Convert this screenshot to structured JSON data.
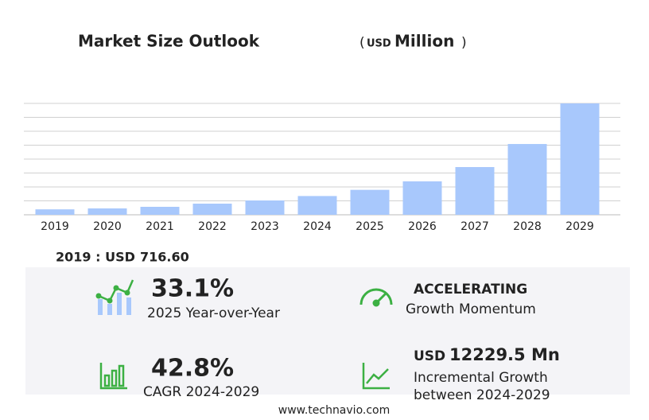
{
  "chart_data": {
    "type": "bar",
    "title": "Market Size Outlook",
    "unit_open": "(",
    "unit_currency": "USD",
    "unit_name": "Million",
    "unit_close": ")",
    "categories": [
      "2019",
      "2020",
      "2021",
      "2022",
      "2023",
      "2024",
      "2025",
      "2026",
      "2027",
      "2028",
      "2029"
    ],
    "values": [
      716.6,
      840,
      1050,
      1470,
      1890,
      2475,
      3294,
      4410,
      6300,
      9345,
      14705
    ],
    "color": "#a8c8fc",
    "ylim": [
      0,
      14705
    ],
    "grid": true
  },
  "summary": {
    "base_label": "2019 : USD",
    "base_value": "716.60",
    "yoy": {
      "value": "33.1%",
      "label": "2025 Year-over-Year"
    },
    "momentum": {
      "value": "ACCELERATING",
      "label": "Growth Momentum"
    },
    "cagr": {
      "value": "42.8%",
      "label": "CAGR 2024-2029"
    },
    "incremental": {
      "currency": "USD",
      "value": "12229.5 Mn",
      "label_1": "Incremental Growth",
      "label_2": "between 2024-2029"
    }
  },
  "footer": "www.technavio.com"
}
